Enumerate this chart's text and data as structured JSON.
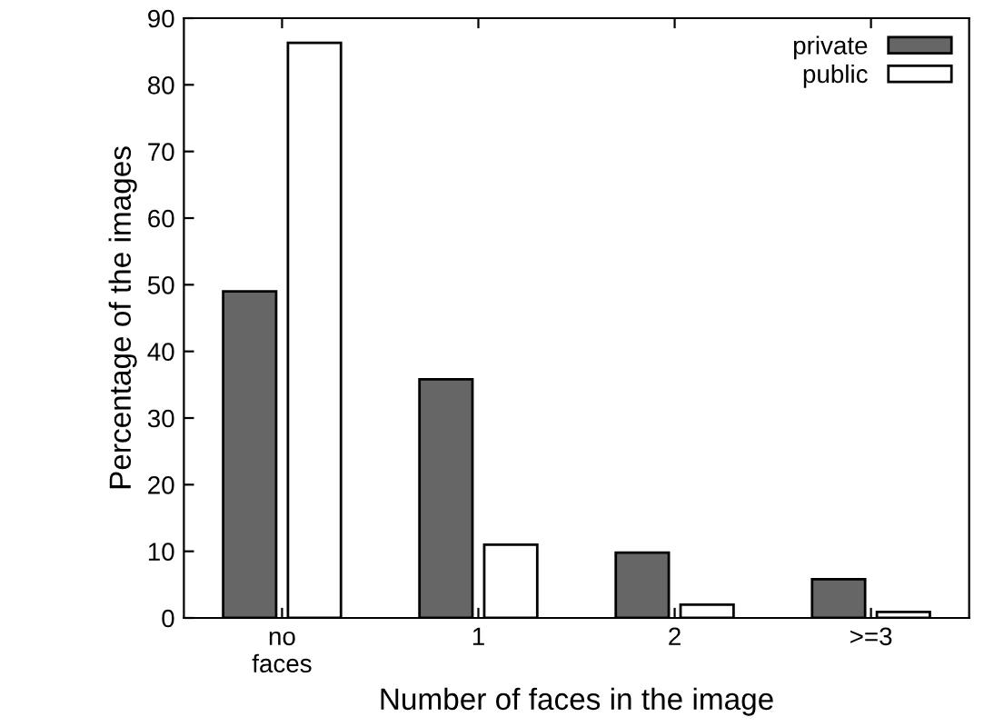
{
  "chart_data": {
    "type": "bar",
    "xlabel": "Number of faces in the image",
    "ylabel": "Percentage of the images",
    "categories": [
      "no\nfaces",
      "1",
      "2",
      ">=3"
    ],
    "series": [
      {
        "name": "private",
        "color": "#666666",
        "values": [
          49,
          35.8,
          9.8,
          5.8
        ]
      },
      {
        "name": "public",
        "color": "#ffffff",
        "values": [
          86.3,
          11,
          2,
          0.9
        ]
      }
    ],
    "ylim": [
      0,
      90
    ],
    "yticks": [
      0,
      10,
      20,
      30,
      40,
      50,
      60,
      70,
      80,
      90
    ],
    "grid": false,
    "legend": "top right"
  }
}
